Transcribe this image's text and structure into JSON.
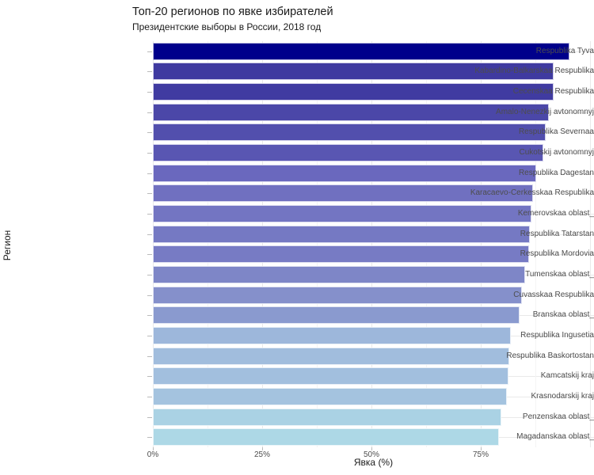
{
  "chart_data": {
    "type": "bar",
    "orientation": "horizontal",
    "title": "Топ-20 регионов по явке избирателей",
    "subtitle": "Президентские выборы в России, 2018 год",
    "xlabel": "Явка (%)",
    "ylabel": "Регион",
    "xlim": [
      0,
      100
    ],
    "legend": "none",
    "grid": "vertical major+minor, horizontal major at row centers",
    "x_ticks": [
      {
        "value": 0,
        "label": "0%"
      },
      {
        "value": 25,
        "label": "25%"
      },
      {
        "value": 50,
        "label": "50%"
      },
      {
        "value": 75,
        "label": "75%"
      }
    ],
    "x_grid_major": [
      0,
      25,
      50,
      75,
      100
    ],
    "x_grid_minor": [
      12.5,
      37.5,
      62.5,
      87.5
    ],
    "bar_gradient": {
      "low_value_color": "#ADD8E6",
      "high_value_color": "#00008B"
    },
    "categories": [
      "Respublika Tyva",
      "Kabardino-Balkarskaa Respublika",
      "Cecenskaa Respublika",
      "Amalo-Nenezkij avtonomnyj",
      "Respublika Severnaa",
      "Cukotskij avtonomnyj",
      "Respublika Dagestan",
      "Karacaevo-Cerkesskaa Respublika",
      "Kemerovskaa oblast_",
      "Respublika Tatarstan",
      "Respublika Mordovia",
      "Tumenskaa oblast_",
      "Cuvasskaa Respublika",
      "Branskaa oblast_",
      "Respublika Ingusetia",
      "Respublika Baskortostan",
      "Kamcatskij kraj",
      "Krasnodarskij kraj",
      "Penzenskaa oblast_",
      "Magadanskaa oblast_"
    ],
    "values": [
      95.2,
      91.7,
      91.6,
      90.6,
      89.9,
      89.3,
      87.7,
      87.0,
      86.6,
      86.3,
      86.1,
      85.2,
      84.5,
      83.9,
      81.9,
      81.5,
      81.4,
      81.0,
      79.7,
      79.2
    ],
    "bar_colors": [
      "#00008B",
      "#3F3AA0",
      "#403BA1",
      "#4B47A8",
      "#524FAD",
      "#5956B2",
      "#6A68BE",
      "#7070C0",
      "#7375C2",
      "#7579C3",
      "#777BC4",
      "#7E86C7",
      "#8590CB",
      "#8A9ACF",
      "#9DB7DB",
      "#A1BDDD",
      "#A2BFDE",
      "#A4C3DF",
      "#AAD2E4",
      "#ADD8E6"
    ]
  },
  "style": {
    "background": "#FFFFFF",
    "title_color": "#1A1A1A",
    "axis_text_color": "#4D4D4D",
    "grid_major": "#E9E9E9",
    "grid_minor": "#F4F4F4",
    "tick_color": "#BBBBBB"
  }
}
